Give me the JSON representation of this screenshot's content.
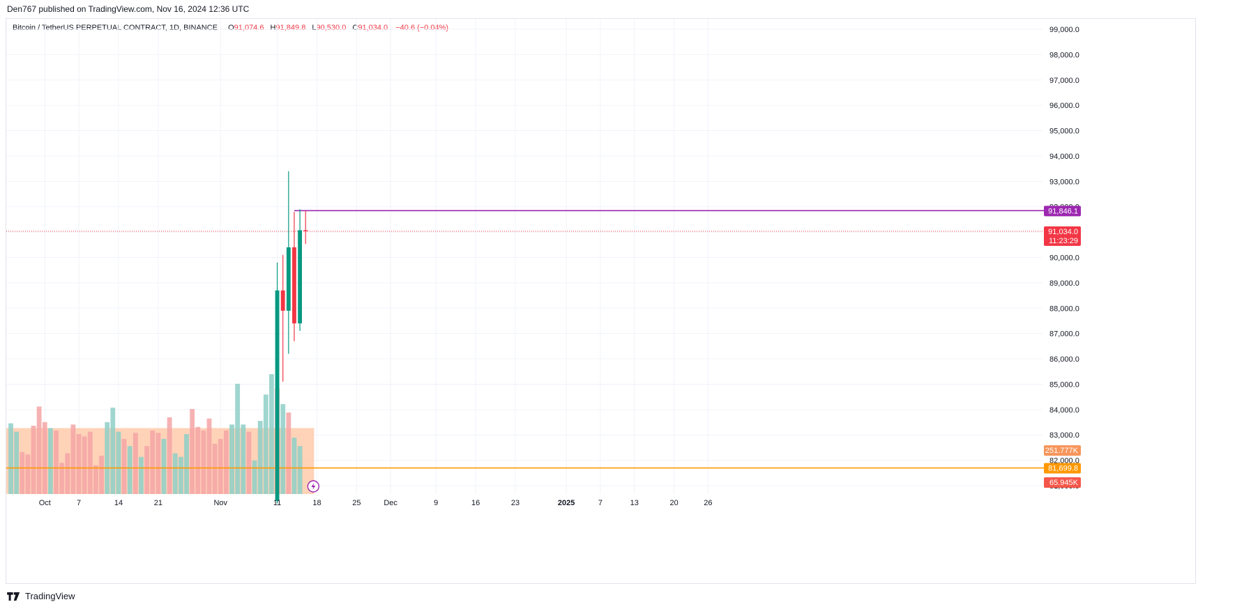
{
  "publisher_line": "Den767 published on TradingView.com, Nov 16, 2024 12:36 UTC",
  "footer": {
    "brand": "TradingView",
    "logo_icon": "tradingview-logo-icon"
  },
  "legend": {
    "symbol": "Bitcoin / TetherUS PERPETUAL CONTRACT, 1D, BINANCE",
    "open_key": "O",
    "open": "91,074.6",
    "high_key": "H",
    "high": "91,849.8",
    "low_key": "L",
    "low": "90,530.0",
    "close_key": "C",
    "close": "91,034.0",
    "change": "−40.6 (−0.04%)"
  },
  "colors": {
    "up": "#089981",
    "down": "#f23645",
    "vol_up": "#8ecfc7",
    "vol_down": "#f4a4a6",
    "vol_ma_fill": "#ffc4a0",
    "resistance": "#9c27b0",
    "support": "#ff9800",
    "grid": "#f0f3fa",
    "axis_text": "#131722"
  },
  "chart_data": {
    "type": "candlestick",
    "y_axis": {
      "min": 80700,
      "max": 99200,
      "ticks": [
        99000,
        98000,
        97000,
        96000,
        95000,
        94000,
        93000,
        92000,
        91000,
        90000,
        89000,
        88000,
        87000,
        86000,
        85000,
        84000,
        83000,
        82000,
        81000
      ],
      "tick_labels": [
        "99,000.0",
        "98,000.0",
        "97,000.0",
        "96,000.0",
        "95,000.0",
        "94,000.0",
        "93,000.0",
        "92,000.0",
        "91,000.0",
        "90,000.0",
        "89,000.0",
        "88,000.0",
        "87,000.0",
        "86,000.0",
        "85,000.0",
        "84,000.0",
        "83,000.0",
        "82,000.0",
        "81,000.0"
      ]
    },
    "x_axis": {
      "bar_index_min": -0.8,
      "bar_index_max": 182,
      "ticks": [
        {
          "label": "Oct",
          "index": 6,
          "bold": false
        },
        {
          "label": "7",
          "index": 12,
          "bold": false
        },
        {
          "label": "14",
          "index": 19,
          "bold": false
        },
        {
          "label": "21",
          "index": 26,
          "bold": false
        },
        {
          "label": "Nov",
          "index": 37,
          "bold": false
        },
        {
          "label": "11",
          "index": 47,
          "bold": false
        },
        {
          "label": "18",
          "index": 54,
          "bold": false
        },
        {
          "label": "25",
          "index": 61,
          "bold": false
        },
        {
          "label": "Dec",
          "index": 67,
          "bold": false
        },
        {
          "label": "9",
          "index": 75,
          "bold": false
        },
        {
          "label": "16",
          "index": 82,
          "bold": false
        },
        {
          "label": "23",
          "index": 89,
          "bold": false
        },
        {
          "label": "2025",
          "index": 98,
          "bold": true
        },
        {
          "label": "7",
          "index": 104,
          "bold": false
        },
        {
          "label": "13",
          "index": 110,
          "bold": false
        },
        {
          "label": "20",
          "index": 117,
          "bold": false
        },
        {
          "label": "26",
          "index": 123,
          "bold": false
        }
      ]
    },
    "candles": [
      {
        "date": "Nov 11",
        "index": 47,
        "open": 80400,
        "high": 89800,
        "low": 80300,
        "close": 88700
      },
      {
        "date": "Nov 12",
        "index": 48,
        "open": 88700,
        "high": 90100,
        "low": 85100,
        "close": 87900
      },
      {
        "date": "Nov 13",
        "index": 49,
        "open": 87900,
        "high": 93400,
        "low": 86200,
        "close": 90400
      },
      {
        "date": "Nov 14",
        "index": 50,
        "open": 90400,
        "high": 91800,
        "low": 86700,
        "close": 87400
      },
      {
        "date": "Nov 15",
        "index": 51,
        "open": 87400,
        "high": 91900,
        "low": 87100,
        "close": 91074.6
      },
      {
        "date": "Nov 16",
        "index": 52,
        "open": 91074.6,
        "high": 91849.8,
        "low": 90530,
        "close": 91034
      }
    ],
    "volume": {
      "start_index": 0,
      "values": [
        0.59,
        0.52,
        0.35,
        0.33,
        0.57,
        0.73,
        0.6,
        0.55,
        0.53,
        0.26,
        0.34,
        0.58,
        0.5,
        0.48,
        0.52,
        0.24,
        0.32,
        0.6,
        0.72,
        0.52,
        0.46,
        0.4,
        0.51,
        0.31,
        0.4,
        0.53,
        0.51,
        0.46,
        0.64,
        0.34,
        0.31,
        0.5,
        0.71,
        0.56,
        0.53,
        0.63,
        0.42,
        0.46,
        0.53,
        0.58,
        0.92,
        0.58,
        0.52,
        0.28,
        0.61,
        0.83,
        1.0,
        0.88,
        0.75,
        0.68,
        0.47,
        0.4
      ],
      "up": [
        true,
        true,
        false,
        false,
        false,
        false,
        false,
        true,
        false,
        false,
        false,
        false,
        false,
        false,
        false,
        false,
        false,
        true,
        true,
        true,
        false,
        true,
        false,
        true,
        false,
        false,
        false,
        true,
        false,
        true,
        true,
        true,
        false,
        false,
        false,
        false,
        false,
        false,
        false,
        true,
        true,
        true,
        false,
        true,
        true,
        true,
        true,
        false,
        true,
        false,
        true,
        true
      ],
      "ma_level": 0.55,
      "ma_end_index": 53,
      "max_label": "251.777K",
      "current_label": "65.945K"
    },
    "levels": [
      {
        "name": "resistance",
        "price": 91846.1,
        "label": "91,846.1",
        "start_index": 50
      },
      {
        "name": "support",
        "price": 81699.8,
        "label": "81,699.8",
        "start_index": -1
      }
    ],
    "last_price": {
      "price": 91034,
      "label": "91,034.0",
      "countdown": "11:23:29"
    },
    "grid": true
  }
}
